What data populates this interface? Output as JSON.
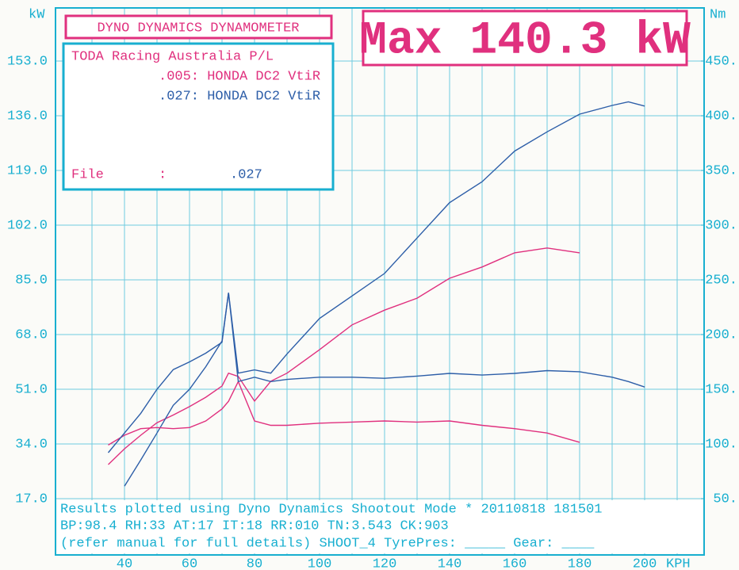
{
  "chart_data": {
    "type": "line",
    "title": "DYNO DYNAMICS DYNAMOMETER",
    "max_label": "Max 140.3 kW",
    "info": {
      "company": "TODA Racing Australia P/L",
      "file_label": "File",
      "file_sep": ":",
      "file_value": ".027"
    },
    "y_unit": "kW",
    "y2_unit": "Nm",
    "x_unit": "KPH",
    "footer": [
      "Results plotted using Dyno Dynamics Shootout Mode * 20110818 181501",
      "BP:98.4  RH:33 AT:17 IT:18  RR:010 TN:3.543 CK:903",
      "(refer manual for full details) SHOOT_4  TyrePres: _____  Gear: ____"
    ],
    "x": [
      35,
      40,
      45,
      50,
      55,
      60,
      65,
      70,
      72,
      75,
      80,
      85,
      90,
      100,
      110,
      120,
      130,
      140,
      150,
      160,
      170,
      180,
      190,
      195,
      200,
      205
    ],
    "xlim": [
      19,
      218
    ],
    "xticks": [
      40,
      60,
      80,
      100,
      120,
      140,
      160,
      180,
      200
    ],
    "x_minor_ticks": [
      30,
      50,
      70,
      90,
      110,
      130,
      150,
      170,
      190,
      210
    ],
    "ylim": [
      0,
      170
    ],
    "yticks": [
      {
        "value": 17,
        "label": "17.0"
      },
      {
        "value": 34,
        "label": "34.0"
      },
      {
        "value": 51,
        "label": "51.0"
      },
      {
        "value": 68,
        "label": "68.0"
      },
      {
        "value": 85,
        "label": "85.0"
      },
      {
        "value": 102,
        "label": "102.0"
      },
      {
        "value": 119,
        "label": "119.0"
      },
      {
        "value": 136,
        "label": "136.0"
      },
      {
        "value": 153,
        "label": "153.0"
      }
    ],
    "y2lim": [
      0,
      500
    ],
    "y2ticks": [
      {
        "value": 50,
        "label": "50."
      },
      {
        "value": 100,
        "label": "100."
      },
      {
        "value": 150,
        "label": "150."
      },
      {
        "value": 200,
        "label": "200."
      },
      {
        "value": 250,
        "label": "250."
      },
      {
        "value": 300,
        "label": "300."
      },
      {
        "value": 350,
        "label": "350."
      },
      {
        "value": 400,
        "label": "400."
      },
      {
        "value": 450,
        "label": "450."
      }
    ],
    "grid": true,
    "series": [
      {
        "name": ".005: HONDA DC2 VtiR",
        "color": "#e0307e",
        "values": [
          27.6,
          32.5,
          36.7,
          40.6,
          43,
          45.6,
          48.5,
          52,
          56,
          55,
          47.3,
          53.5,
          56,
          63.3,
          71,
          75.6,
          79.3,
          85.5,
          89,
          93.4,
          94.9,
          93.4,
          null,
          null,
          null,
          null
        ]
      },
      {
        "name": ".027: HONDA DC2 VtiR",
        "color": "#2d5ea8",
        "values": [
          null,
          20.9,
          29,
          37.4,
          46,
          51,
          58,
          66,
          81,
          56,
          57,
          56,
          62,
          73,
          80,
          87,
          98,
          109,
          115.5,
          125,
          131,
          136.5,
          139.2,
          140.3,
          139,
          null
        ]
      },
      {
        "color": "#e0307e",
        "axis": "y2",
        "values": [
          99,
          108,
          114,
          115,
          114,
          115,
          121,
          132,
          139,
          157,
          121,
          117,
          117,
          119,
          120,
          121,
          120,
          121,
          117,
          114,
          110,
          101.5,
          null,
          null,
          null,
          null
        ]
      },
      {
        "color": "#2d5ea8",
        "axis": "y2",
        "values": [
          92,
          110,
          128,
          150,
          168,
          175,
          183,
          193,
          238,
          157,
          161,
          157,
          159,
          161,
          161,
          160,
          162,
          164.5,
          163,
          164.5,
          167,
          166,
          161,
          157,
          152,
          null
        ]
      }
    ]
  }
}
